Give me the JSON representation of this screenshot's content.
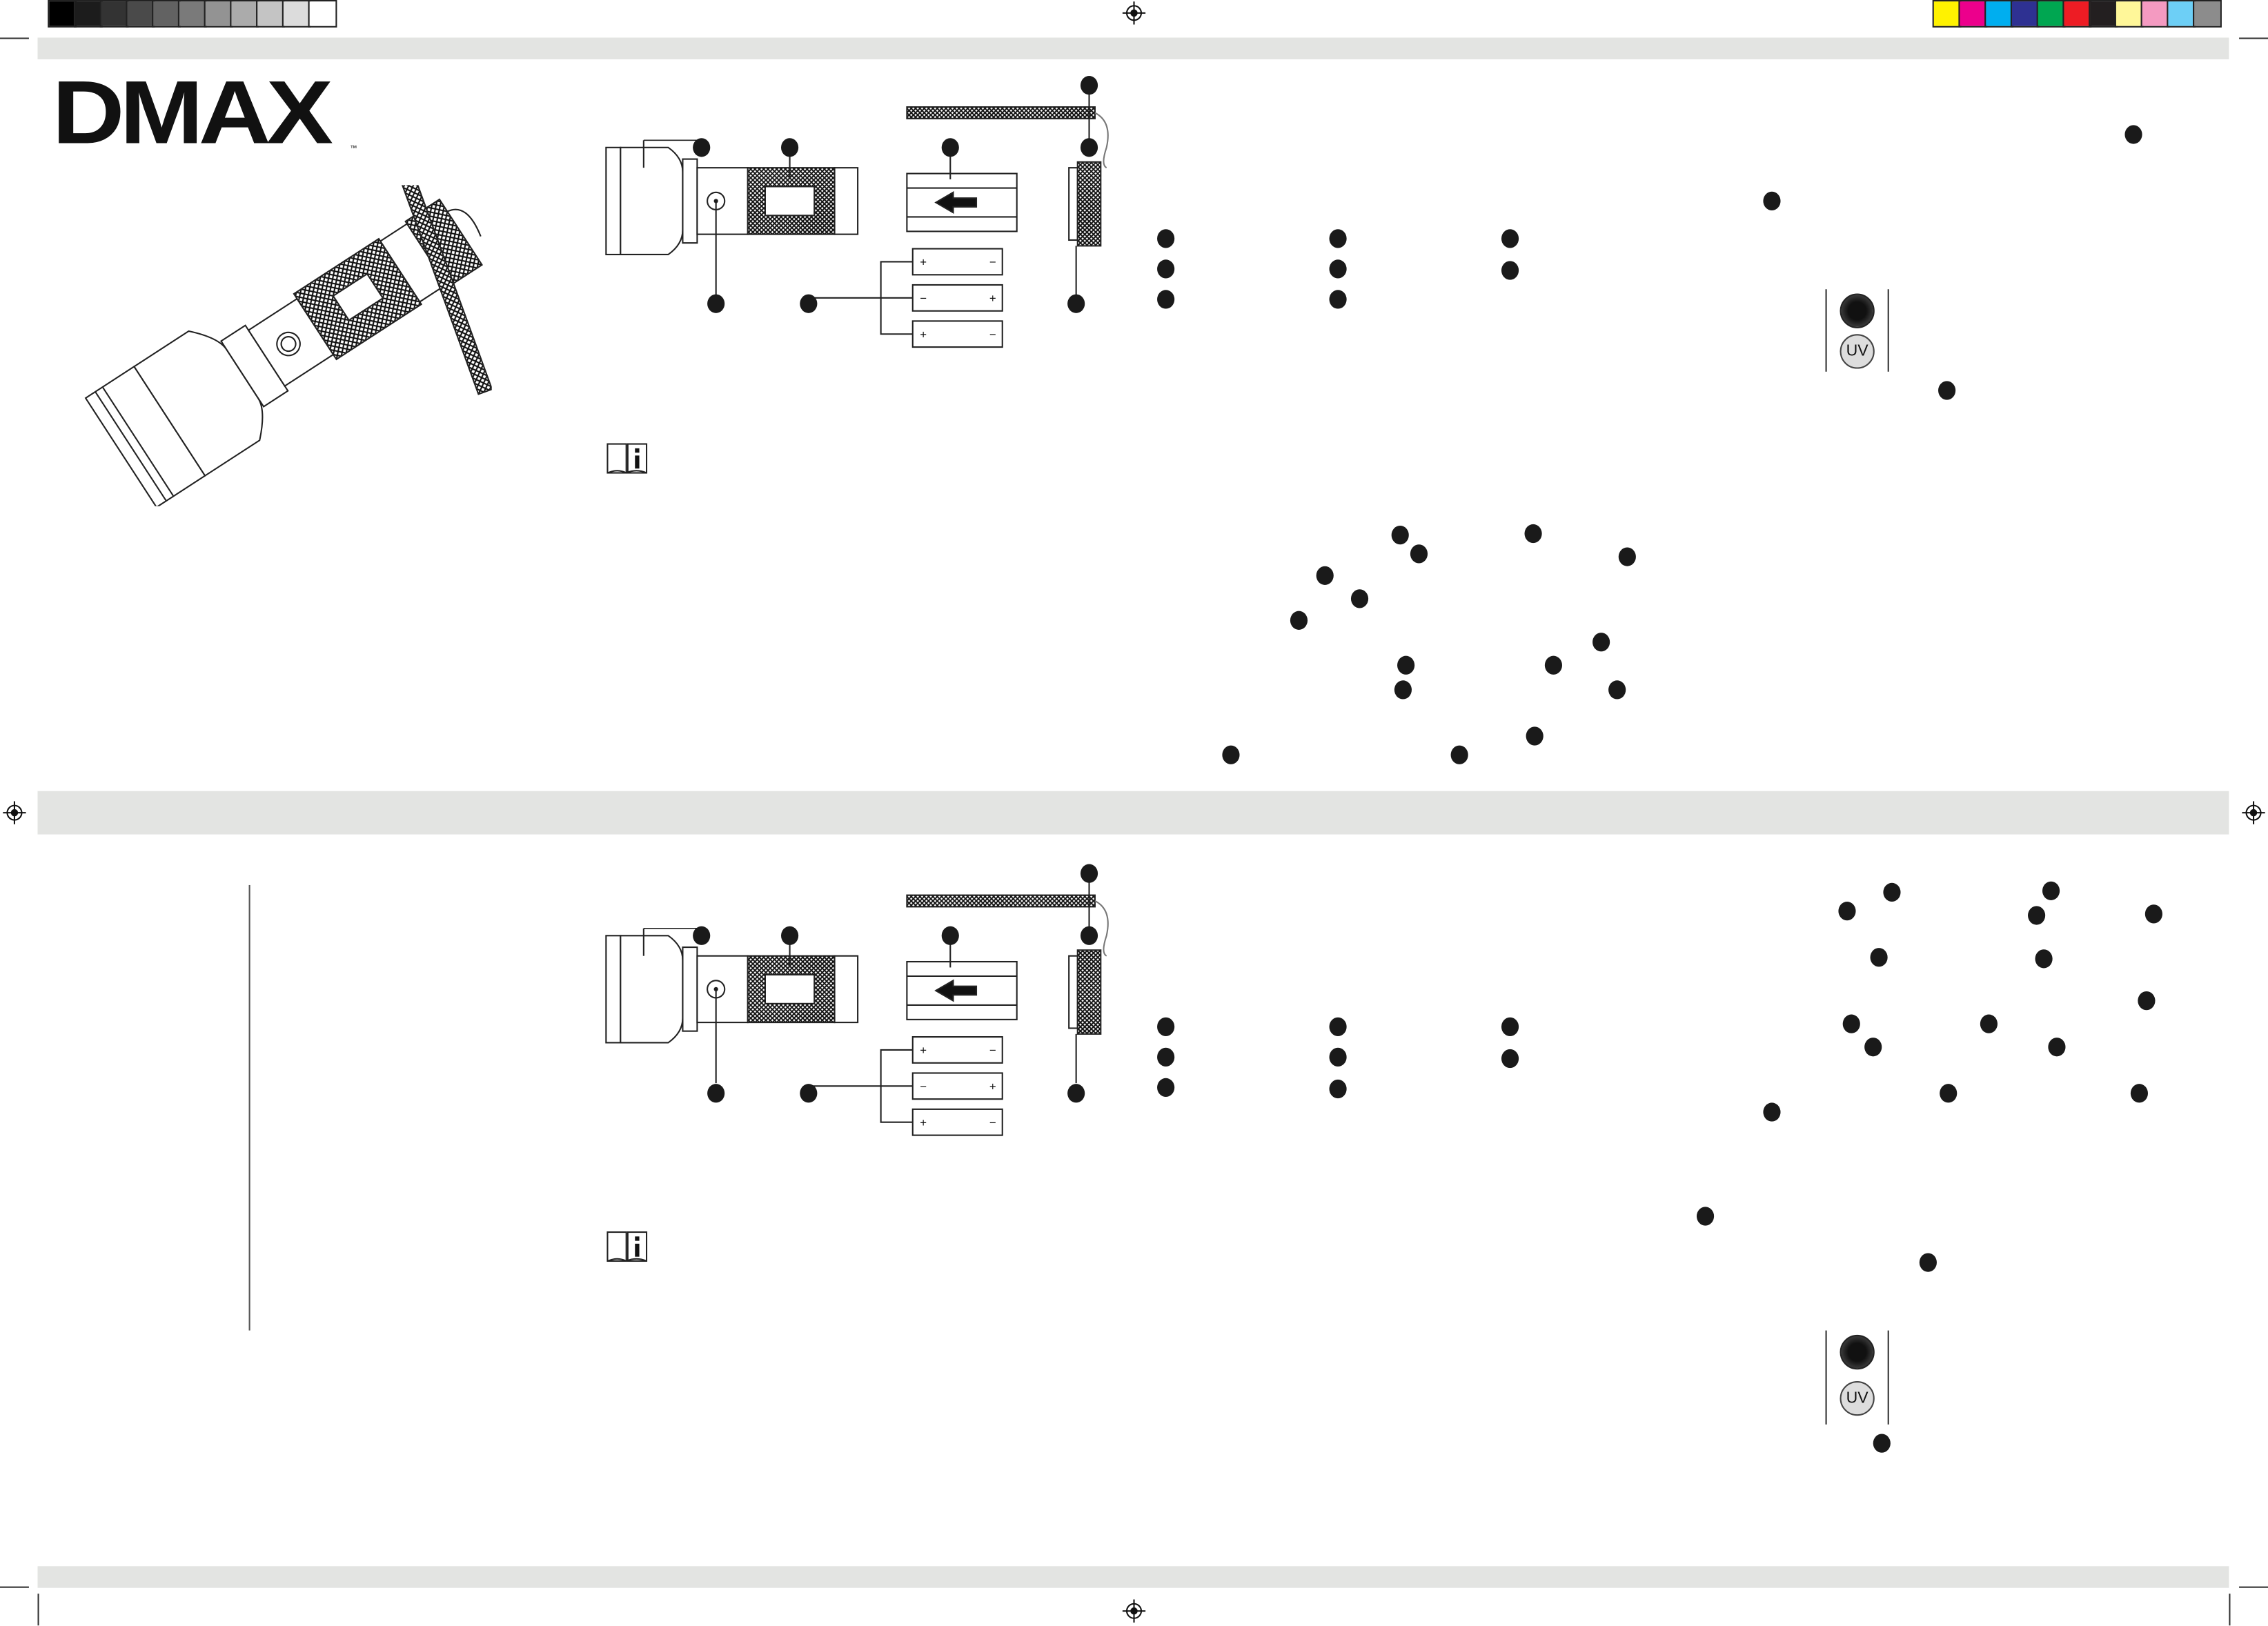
{
  "brand": {
    "logo_text": "DMAX",
    "trademark": "™"
  },
  "grayscale_bar": [
    "#000000",
    "#1c1c1c",
    "#333333",
    "#4a4a4a",
    "#626262",
    "#7a7a7a",
    "#939393",
    "#ababab",
    "#c4c4c4",
    "#dcdcdc",
    "#ffffff"
  ],
  "color_bar": [
    "#fff200",
    "#ec008c",
    "#00aeef",
    "#2e3192",
    "#00a651",
    "#ed1c24",
    "#231f20",
    "#fff799",
    "#f49ac1",
    "#6dcff6",
    "#8c8c8c"
  ],
  "band_color": "#e3e4e2",
  "mode_panel_top": {
    "uv_label": "UV"
  },
  "mode_panel_bottom": {
    "uv_label": "UV"
  },
  "battery_labels": {
    "plus": "+",
    "minus": "−"
  },
  "icons": [
    "registration-mark-icon",
    "info-book-icon",
    "light-button-icon",
    "uv-button-icon",
    "flashlight-illustration",
    "exploded-view-diagram"
  ]
}
